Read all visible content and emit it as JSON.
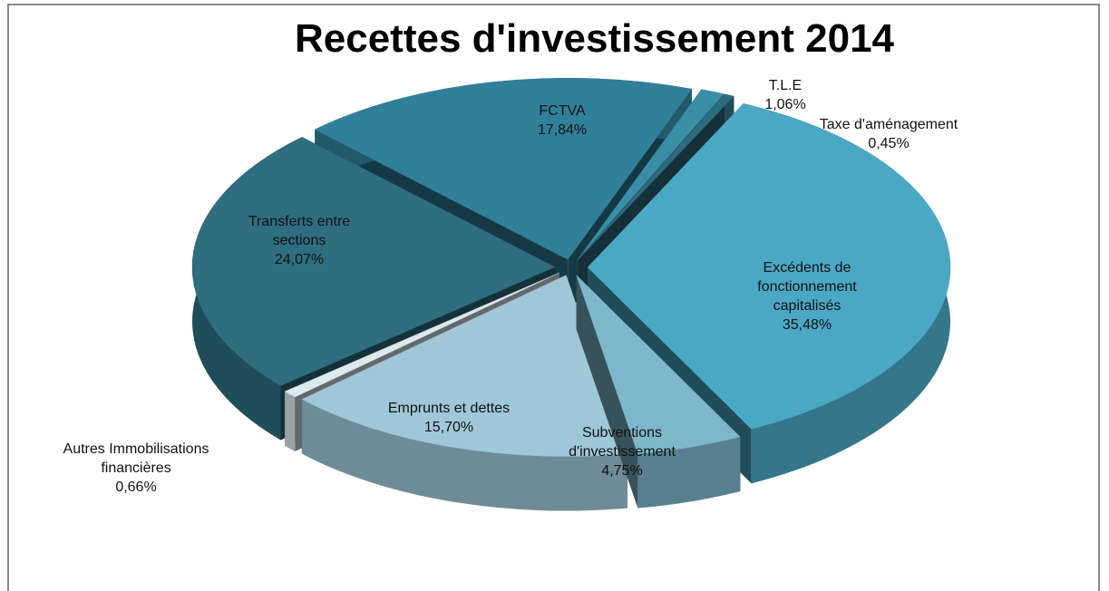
{
  "chart_data": {
    "type": "pie",
    "title": "Recettes d'investissement 2014",
    "categories": [
      "T.L.E",
      "Taxe d'aménagement",
      "Excédents de fonctionnement capitalisés",
      "Subventions d'investissement",
      "Emprunts et dettes",
      "Autres Immobilisations financières",
      "Transferts entre sections",
      "FCTVA"
    ],
    "values": [
      1.06,
      0.45,
      35.48,
      4.75,
      15.7,
      0.66,
      24.07,
      17.84
    ],
    "value_labels": [
      "1,06%",
      "0,45%",
      "35,48%",
      "4,75%",
      "15,70%",
      "0,66%",
      "24,07%",
      "17,84%"
    ],
    "colors": [
      "#3a8ea7",
      "#2f6b7e",
      "#4aa8c5",
      "#7db7cb",
      "#9fc7d7",
      "#dbe8ee",
      "#2e6e80",
      "#30809a"
    ]
  }
}
